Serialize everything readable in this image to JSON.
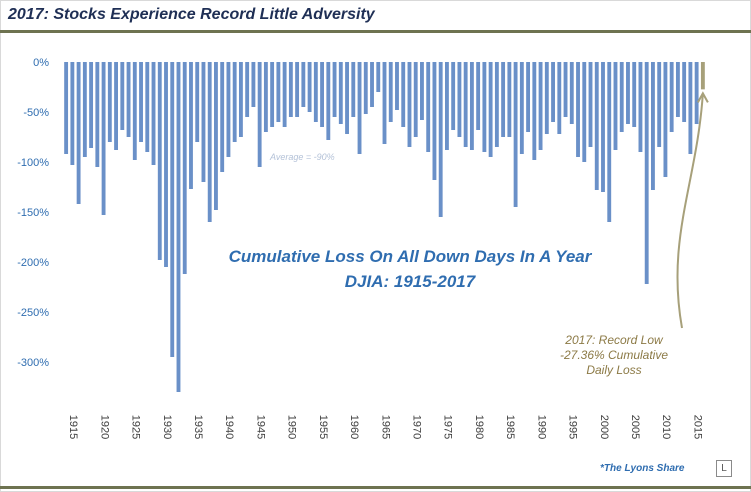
{
  "title": "2017: Stocks Experience Record Little Adversity",
  "chart_data": {
    "type": "bar",
    "title": "Cumulative Loss On All Down Days In A Year",
    "subtitle": "DJIA: 1915-2017",
    "xlabel": "",
    "ylabel": "",
    "ylim": [
      -340,
      0
    ],
    "y_ticks": [
      "0%",
      "-50%",
      "-100%",
      "-150%",
      "-200%",
      "-250%",
      "-300%"
    ],
    "x_ticks": [
      "1915",
      "1920",
      "1925",
      "1930",
      "1935",
      "1940",
      "1945",
      "1950",
      "1955",
      "1960",
      "1965",
      "1970",
      "1975",
      "1980",
      "1985",
      "1990",
      "1995",
      "2000",
      "2005",
      "2010",
      "2015"
    ],
    "x": [
      1915,
      1916,
      1917,
      1918,
      1919,
      1920,
      1921,
      1922,
      1923,
      1924,
      1925,
      1926,
      1927,
      1928,
      1929,
      1930,
      1931,
      1932,
      1933,
      1934,
      1935,
      1936,
      1937,
      1938,
      1939,
      1940,
      1941,
      1942,
      1943,
      1944,
      1945,
      1946,
      1947,
      1948,
      1949,
      1950,
      1951,
      1952,
      1953,
      1954,
      1955,
      1956,
      1957,
      1958,
      1959,
      1960,
      1961,
      1962,
      1963,
      1964,
      1965,
      1966,
      1967,
      1968,
      1969,
      1970,
      1971,
      1972,
      1973,
      1974,
      1975,
      1976,
      1977,
      1978,
      1979,
      1980,
      1981,
      1982,
      1983,
      1984,
      1985,
      1986,
      1987,
      1988,
      1989,
      1990,
      1991,
      1992,
      1993,
      1994,
      1995,
      1996,
      1997,
      1998,
      1999,
      2000,
      2001,
      2002,
      2003,
      2004,
      2005,
      2006,
      2007,
      2008,
      2009,
      2010,
      2011,
      2012,
      2013,
      2014,
      2015,
      2016,
      2017
    ],
    "values": [
      -92,
      -103,
      -142,
      -95,
      -86,
      -105,
      -153,
      -80,
      -88,
      -68,
      -75,
      -98,
      -80,
      -90,
      -103,
      -198,
      -205,
      -295,
      -330,
      -212,
      -127,
      -80,
      -120,
      -160,
      -148,
      -110,
      -95,
      -80,
      -75,
      -55,
      -45,
      -105,
      -70,
      -65,
      -60,
      -65,
      -55,
      -55,
      -45,
      -50,
      -60,
      -65,
      -78,
      -55,
      -62,
      -72,
      -55,
      -92,
      -52,
      -45,
      -30,
      -82,
      -60,
      -48,
      -65,
      -85,
      -75,
      -58,
      -90,
      -118,
      -155,
      -88,
      -68,
      -75,
      -85,
      -88,
      -68,
      -90,
      -95,
      -85,
      -75,
      -75,
      -145,
      -92,
      -70,
      -98,
      -88,
      -72,
      -60,
      -72,
      -55,
      -62,
      -95,
      -100,
      -85,
      -128,
      -130,
      -160,
      -88,
      -70,
      -62,
      -65,
      -90,
      -222,
      -128,
      -85,
      -115,
      -70,
      -55,
      -60,
      -92,
      -62,
      -27.36
    ],
    "highlight": {
      "year": 2017,
      "value": -27.36,
      "color": "#a7a07a"
    },
    "bar_color": "#6a90c8",
    "average": -90,
    "average_label": "Average = -90%",
    "annotation": [
      "2017: Record Low",
      "-27.36% Cumulative",
      "Daily Loss"
    ],
    "grid": false,
    "legend": "none"
  },
  "credit": "*The Lyons Share",
  "logo_letter": "L"
}
